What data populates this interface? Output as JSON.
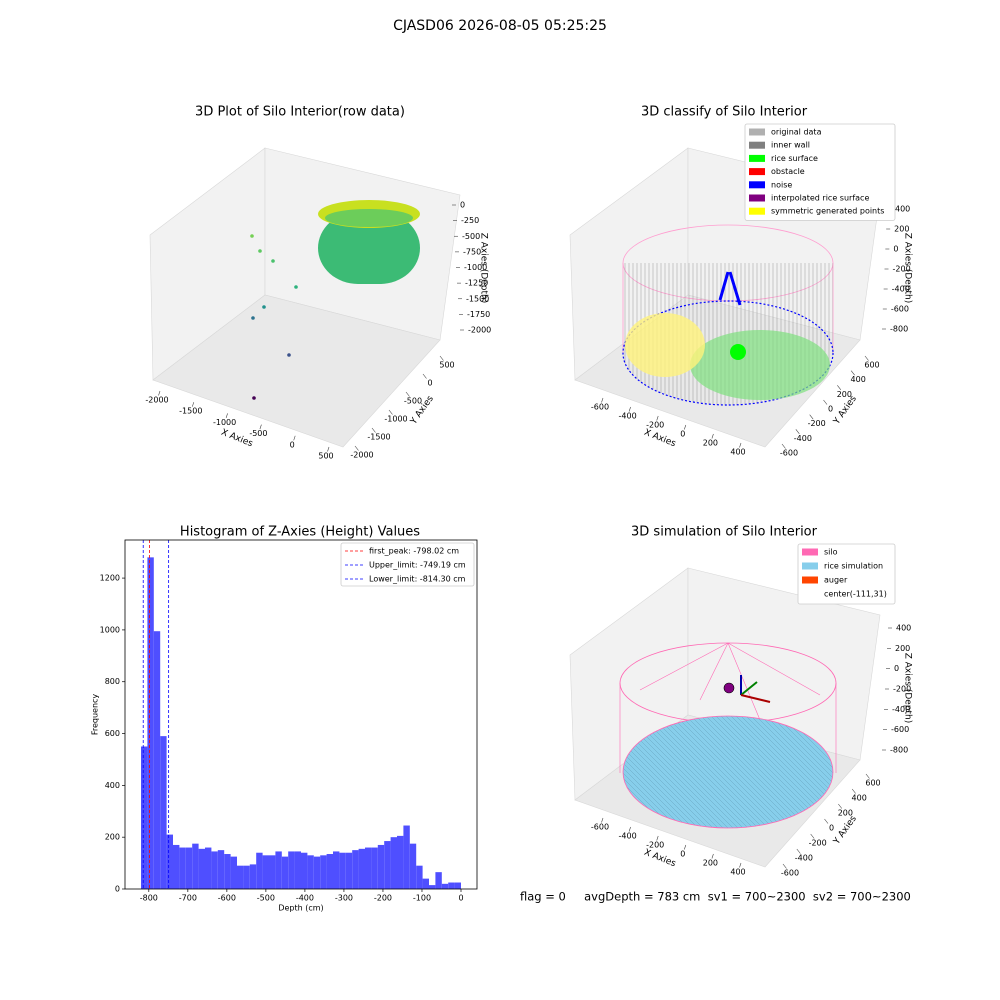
{
  "title": "CJASD06 2026-08-05 05:25:25",
  "footer_text": "flag = 0     avgDepth = 783 cm  sv1 = 700~2300  sv2 = 700~2300",
  "chart_data": [
    {
      "type": "scatter3d",
      "title": "3D Plot of Silo Interior(row data)",
      "xlabel": "X Axies",
      "ylabel": "Y Axies",
      "zlabel": "Z Axies (Depth)",
      "xticks": [
        -2000,
        -1500,
        -1000,
        -500,
        0,
        500
      ],
      "yticks": [
        -2000,
        -1500,
        -1000,
        -500,
        0,
        500
      ],
      "zticks": [
        0,
        -250,
        -500,
        -750,
        -1000,
        -1250,
        -1500,
        -1750,
        -2000
      ]
    },
    {
      "type": "scatter3d",
      "title": "3D classify of Silo Interior",
      "xlabel": "X Axies",
      "ylabel": "Y Axies",
      "zlabel": "Z Axies (Depth)",
      "xticks": [
        -600,
        -400,
        -200,
        0,
        200,
        400
      ],
      "yticks": [
        -600,
        -400,
        -200,
        0,
        200,
        400,
        600
      ],
      "zticks": [
        400,
        200,
        0,
        -200,
        -400,
        -600,
        -800
      ],
      "legend": [
        {
          "name": "original data",
          "color": "#b0b0b0"
        },
        {
          "name": "inner wall",
          "color": "#808080"
        },
        {
          "name": "rice surface",
          "color": "#00ff00"
        },
        {
          "name": "obstacle",
          "color": "#ff0000"
        },
        {
          "name": "noise",
          "color": "#0000ff"
        },
        {
          "name": "interpolated rice surface",
          "color": "#800080"
        },
        {
          "name": "symmetric generated points",
          "color": "#ffff00"
        }
      ]
    },
    {
      "type": "histogram",
      "title": "Histogram of Z-Axies (Height) Values",
      "xlabel": "Depth (cm)",
      "ylabel": "Frequency",
      "color": "#4f4fff",
      "bins": [
        -820,
        -803.6,
        -787.2,
        -770.8,
        -754.4,
        -738,
        -721.6,
        -705.2,
        -688.8,
        -672.4,
        -656,
        -639.6,
        -623.2,
        -606.8,
        -590.4,
        -574,
        -557.6,
        -541.2,
        -524.8,
        -508.4,
        -492,
        -475.6,
        -459.2,
        -442.8,
        -426.4,
        -410,
        -393.6,
        -377.2,
        -360.8,
        -344.4,
        -328,
        -311.6,
        -295.2,
        -278.8,
        -262.4,
        -246,
        -229.6,
        -213.2,
        -196.8,
        -180.4,
        -164,
        -147.6,
        -131.2,
        -114.8,
        -98.4,
        -82,
        -65.6,
        -49.2,
        -32.8,
        -16.4,
        0
      ],
      "values": [
        550,
        1280,
        995,
        590,
        210,
        170,
        160,
        160,
        175,
        155,
        160,
        145,
        150,
        135,
        125,
        90,
        90,
        95,
        140,
        130,
        130,
        145,
        125,
        145,
        145,
        140,
        130,
        125,
        130,
        135,
        145,
        140,
        140,
        150,
        155,
        160,
        160,
        170,
        185,
        200,
        205,
        245,
        175,
        90,
        40,
        15,
        65,
        20,
        25,
        25
      ],
      "vlines": [
        {
          "name": "first_peak: -798.02 cm",
          "value": -798.02,
          "color": "#ff0000"
        },
        {
          "name": "Upper_limit: -749.19 cm",
          "value": -749.19,
          "color": "#0000ff"
        },
        {
          "name": "Lower_limit: -814.30 cm",
          "value": -814.3,
          "color": "#0000ff"
        }
      ],
      "xlim": [
        -861,
        41
      ],
      "ylim": [
        0,
        1347
      ],
      "xticks": [
        -800,
        -700,
        -600,
        -500,
        -400,
        -300,
        -200,
        -100,
        0
      ],
      "yticks": [
        0,
        200,
        400,
        600,
        800,
        1000,
        1200
      ]
    },
    {
      "type": "scatter3d",
      "title": "3D simulation of Silo Interior",
      "xlabel": "X Axies",
      "ylabel": "Y Axies",
      "zlabel": "Z Axies (Depth)",
      "xticks": [
        -600,
        -400,
        -200,
        0,
        200,
        400
      ],
      "yticks": [
        -600,
        -400,
        -200,
        0,
        200,
        400,
        600
      ],
      "zticks": [
        400,
        200,
        0,
        -200,
        -400,
        -600,
        -800
      ],
      "legend": [
        {
          "name": "silo",
          "color": "#ff69b4"
        },
        {
          "name": "rice simulation",
          "color": "#87ceeb"
        },
        {
          "name": "auger",
          "color": "#ff4500"
        },
        {
          "name": "center(-111,31)"
        }
      ]
    }
  ]
}
